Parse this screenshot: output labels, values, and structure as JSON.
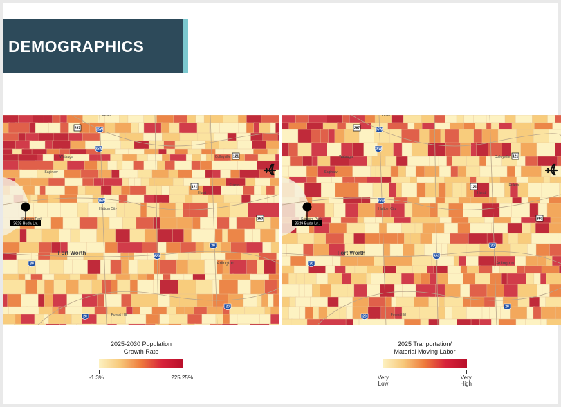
{
  "header": {
    "title": "DEMOGRAPHICS",
    "band_color": "#2d4a5a",
    "accent_color": "#7cc8cf"
  },
  "maps": [
    {
      "name": "population-growth-map",
      "pin_label": "3629 Buda Ln.",
      "places": [
        "Fort Worth",
        "Arlington",
        "Euless",
        "Hurst",
        "Colleyville",
        "Saginaw",
        "Keller",
        "Haltom City",
        "Watauga",
        "Sansom Park",
        "Forest Hill"
      ],
      "highways": [
        "287",
        "35W",
        "35W",
        "121",
        "121",
        "360",
        "35W",
        "30",
        "820",
        "30",
        "20",
        "20"
      ]
    },
    {
      "name": "labor-map",
      "pin_label": "3629 Buda Ln.",
      "places": [
        "Fort Worth",
        "Arlington",
        "Euless",
        "Hurst",
        "Colleyville",
        "Saginaw",
        "Keller",
        "Haltom City",
        "Watauga",
        "Sansom Park",
        "Forest Hill"
      ],
      "highways": [
        "287",
        "35W",
        "35W",
        "121",
        "121",
        "360",
        "35W",
        "30",
        "820",
        "30",
        "20",
        "20"
      ]
    }
  ],
  "legend_left": {
    "title_line1": "2025-2030 Population",
    "title_line2": "Growth Rate",
    "min_label": "-1.3%",
    "max_label": "225.25%"
  },
  "legend_right": {
    "title_line1": "2025 Tranportation/",
    "title_line2": "Material Moving Labor",
    "min_label_1": "Very",
    "min_label_2": "Low",
    "max_label_1": "Very",
    "max_label_2": "High"
  },
  "palette": [
    "#fdf2c2",
    "#fbe3a0",
    "#f8cc7c",
    "#f3a85c",
    "#ec8648",
    "#e0604a",
    "#d13c4a",
    "#c02a3a"
  ]
}
